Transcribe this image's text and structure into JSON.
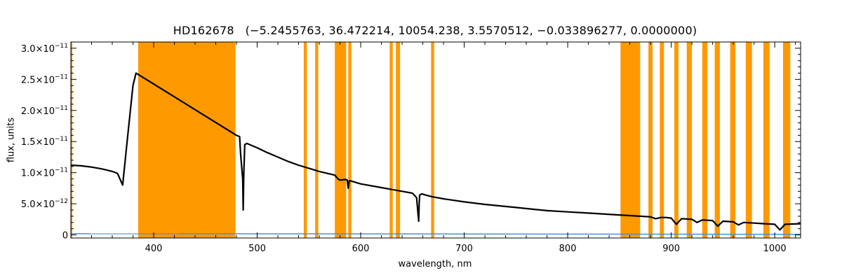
{
  "chart_data": {
    "type": "line",
    "title": "HD162678   (−5.2455763, 36.472214, 10054.238, 3.5570512, −0.033896277, 0.0000000)",
    "xlabel": "wavelength, nm",
    "ylabel": "flux, units",
    "xlim": [
      320,
      1025
    ],
    "ylim": [
      -5e-13,
      3.1e-11
    ],
    "x_ticks": [
      {
        "value": 400,
        "label": "400"
      },
      {
        "value": 500,
        "label": "500"
      },
      {
        "value": 600,
        "label": "600"
      },
      {
        "value": 700,
        "label": "700"
      },
      {
        "value": 800,
        "label": "800"
      },
      {
        "value": 900,
        "label": "900"
      },
      {
        "value": 1000,
        "label": "1000"
      }
    ],
    "y_ticks": [
      {
        "value": 0,
        "mant": "0",
        "exp": ""
      },
      {
        "value": 5e-12,
        "mant": "5.0×10",
        "exp": "−12"
      },
      {
        "value": 1e-11,
        "mant": "1.0×10",
        "exp": "−11"
      },
      {
        "value": 1.5e-11,
        "mant": "1.5×10",
        "exp": "−11"
      },
      {
        "value": 2e-11,
        "mant": "2.0×10",
        "exp": "−11"
      },
      {
        "value": 2.5e-11,
        "mant": "2.5×10",
        "exp": "−11"
      },
      {
        "value": 3e-11,
        "mant": "3.0×10",
        "exp": "−11"
      }
    ],
    "masked_bands": [
      [
        320,
        321
      ],
      [
        385,
        479
      ],
      [
        545,
        548
      ],
      [
        556,
        559
      ],
      [
        575,
        586
      ],
      [
        588,
        591
      ],
      [
        628,
        631
      ],
      [
        634,
        638
      ],
      [
        668,
        671
      ],
      [
        851,
        870
      ],
      [
        878,
        882
      ],
      [
        889,
        893
      ],
      [
        903,
        907
      ],
      [
        915,
        920
      ],
      [
        930,
        935
      ],
      [
        942,
        947
      ],
      [
        957,
        962
      ],
      [
        972,
        978
      ],
      [
        989,
        995
      ],
      [
        1008,
        1015
      ]
    ],
    "series": [
      {
        "color": "#000000",
        "x": [
          320,
          330,
          340,
          350,
          355,
          360,
          365,
          370,
          375,
          380,
          383,
          480,
          483,
          484,
          486,
          486.5,
          487,
          488,
          490,
          500,
          510,
          520,
          530,
          540,
          550,
          560,
          570,
          575,
          578,
          580,
          585,
          587,
          588,
          589,
          590,
          600,
          620,
          630,
          640,
          650,
          654,
          656,
          656.5,
          657,
          659,
          665,
          670,
          680,
          700,
          720,
          750,
          780,
          800,
          820,
          850,
          860,
          870,
          880,
          885,
          890,
          895,
          900,
          905,
          910,
          920,
          925,
          930,
          940,
          945,
          950,
          960,
          965,
          970,
          980,
          990,
          1000,
          1005,
          1010,
          1025
        ],
        "y": [
          1.12e-11,
          1.11e-11,
          1.09e-11,
          1.06e-11,
          1.04e-11,
          1.02e-11,
          9.9e-12,
          8e-12,
          1.6e-11,
          2.4e-11,
          2.6e-11,
          1.6e-11,
          1.58e-11,
          1.3e-11,
          9e-12,
          4e-12,
          9.5e-12,
          1.45e-11,
          1.47e-11,
          1.4e-11,
          1.32e-11,
          1.25e-11,
          1.18e-11,
          1.12e-11,
          1.07e-11,
          1.02e-11,
          9.8e-12,
          9.6e-12,
          9e-12,
          8.8e-12,
          8.9e-12,
          8.8e-12,
          7.5e-12,
          8.7e-12,
          8.7e-12,
          8.2e-12,
          7.6e-12,
          7.3e-12,
          7e-12,
          6.7e-12,
          6e-12,
          2.2e-12,
          5e-12,
          6.4e-12,
          6.6e-12,
          6.3e-12,
          6.1e-12,
          5.8e-12,
          5.3e-12,
          4.9e-12,
          4.4e-12,
          3.9e-12,
          3.7e-12,
          3.5e-12,
          3.2e-12,
          3.1e-12,
          3e-12,
          2.9e-12,
          2.6e-12,
          2.8e-12,
          2.8e-12,
          2.7e-12,
          1.7e-12,
          2.6e-12,
          2.5e-12,
          2e-12,
          2.4e-12,
          2.3e-12,
          1.4e-12,
          2.2e-12,
          2.1e-12,
          1.6e-12,
          2e-12,
          1.9e-12,
          1.8e-12,
          1.7e-12,
          8e-13,
          1.7e-12,
          1.8e-12
        ]
      },
      {
        "color": "#4a90d9",
        "x": [
          320,
          1025
        ],
        "y": [
          2e-13,
          1e-13
        ]
      }
    ]
  }
}
